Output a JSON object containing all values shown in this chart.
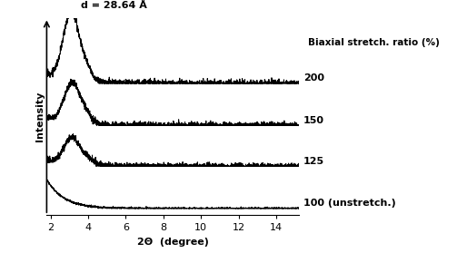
{
  "xlabel": "2Θ  (degree)",
  "ylabel": "Intensity",
  "xlim": [
    1.8,
    15.2
  ],
  "ylim": [
    -0.05,
    1.45
  ],
  "xticks": [
    2,
    4,
    6,
    8,
    10,
    12,
    14
  ],
  "annotation_text": "d = 28.64 Å",
  "legend_title": "Biaxial stretch. ratio (%)",
  "legend_labels": [
    "200",
    "150",
    "125",
    "100 (unstretch.)"
  ],
  "offsets": [
    0.95,
    0.63,
    0.32,
    0.0
  ],
  "background_color": "#ffffff",
  "line_color": "#000000"
}
